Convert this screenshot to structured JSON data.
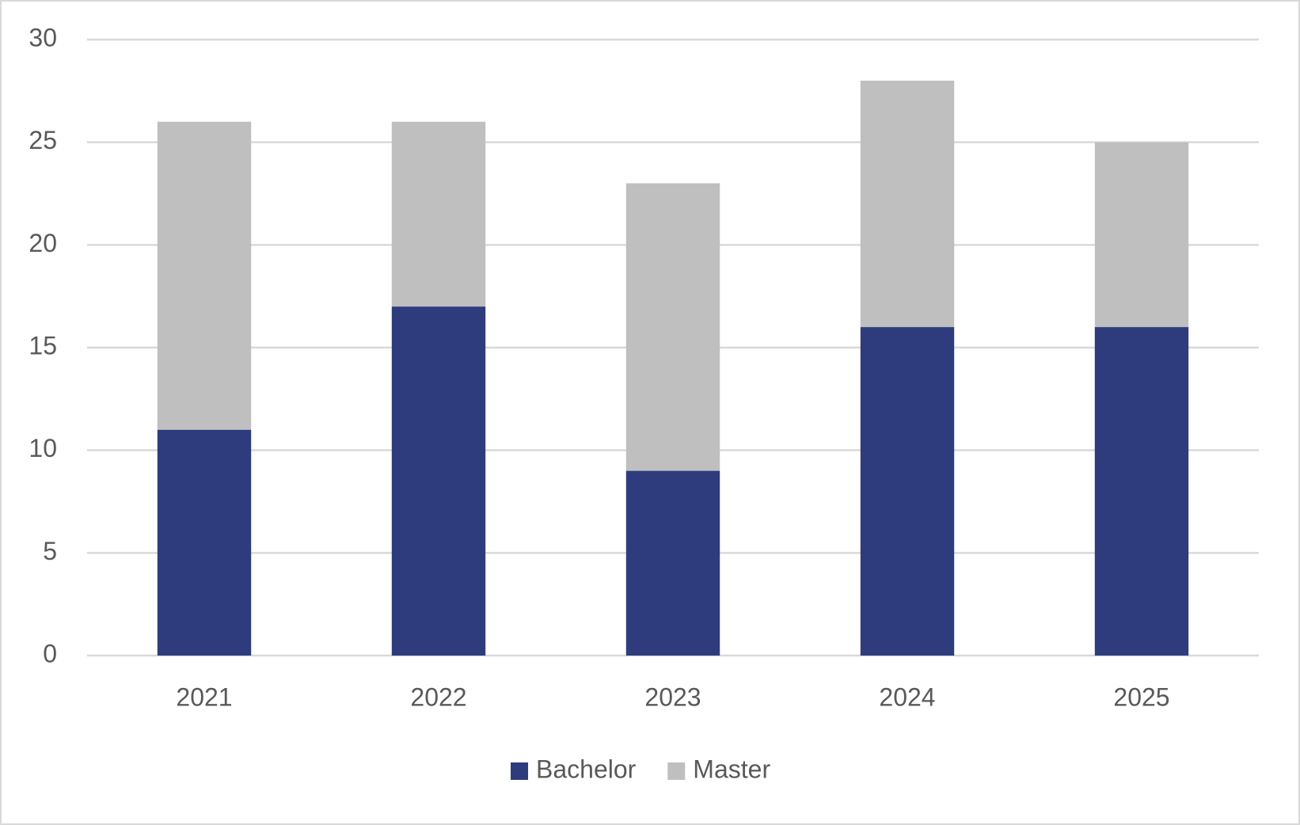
{
  "chart_data": {
    "type": "bar",
    "stacked": true,
    "categories": [
      "2021",
      "2022",
      "2023",
      "2024",
      "2025"
    ],
    "series": [
      {
        "name": "Bachelor",
        "color": "#2e3c7e",
        "values": [
          11,
          17,
          9,
          16,
          16
        ]
      },
      {
        "name": "Master",
        "color": "#bfbfbf",
        "values": [
          15,
          9,
          14,
          12,
          9
        ]
      }
    ],
    "ylim": [
      0,
      30
    ],
    "yticks": [
      0,
      5,
      10,
      15,
      20,
      25,
      30
    ],
    "grid": true,
    "legend": "bottom"
  }
}
